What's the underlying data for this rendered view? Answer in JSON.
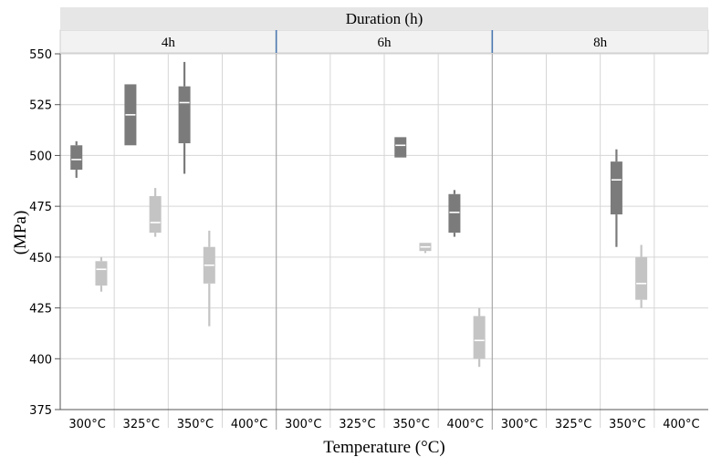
{
  "chart_data": {
    "type": "box",
    "title": "",
    "facet_header": "Duration (h)",
    "xlabel": "Temperature (°C)",
    "ylabel": "(MPa)",
    "ylim": [
      375,
      550
    ],
    "yticks": [
      375,
      400,
      425,
      450,
      475,
      500,
      525,
      550
    ],
    "grid": true,
    "categories": [
      "300°C",
      "325°C",
      "350°C",
      "400°C"
    ],
    "colors": {
      "dark": "#7b7b7b",
      "light": "#c4c4c4",
      "grid": "#d6d6d6",
      "header": "#e6e6e6",
      "divider": "#4a78b0"
    },
    "panels": [
      {
        "label": "4h",
        "boxes": [
          {
            "category": "300°C",
            "shade": "dark",
            "min": 489,
            "q1": 493,
            "median": 498,
            "q3": 505,
            "max": 507
          },
          {
            "category": "300°C",
            "shade": "light",
            "min": 433,
            "q1": 436,
            "median": 444,
            "q3": 448,
            "max": 450
          },
          {
            "category": "325°C",
            "shade": "dark",
            "min": 505,
            "q1": 505,
            "median": 520,
            "q3": 535,
            "max": 535
          },
          {
            "category": "325°C",
            "shade": "light",
            "min": 460,
            "q1": 462,
            "median": 467,
            "q3": 480,
            "max": 484
          },
          {
            "category": "350°C",
            "shade": "dark",
            "min": 491,
            "q1": 506,
            "median": 526,
            "q3": 534,
            "max": 546
          },
          {
            "category": "350°C",
            "shade": "light",
            "min": 416,
            "q1": 437,
            "median": 446,
            "q3": 455,
            "max": 463
          }
        ]
      },
      {
        "label": "6h",
        "boxes": [
          {
            "category": "350°C",
            "shade": "dark",
            "min": 499,
            "q1": 499,
            "median": 505,
            "q3": 509,
            "max": 509
          },
          {
            "category": "350°C",
            "shade": "light",
            "min": 452,
            "q1": 453,
            "median": 455,
            "q3": 457,
            "max": 457
          },
          {
            "category": "400°C",
            "shade": "dark",
            "min": 460,
            "q1": 462,
            "median": 472,
            "q3": 481,
            "max": 483
          },
          {
            "category": "400°C",
            "shade": "light",
            "min": 396,
            "q1": 400,
            "median": 409,
            "q3": 421,
            "max": 425
          }
        ]
      },
      {
        "label": "8h",
        "boxes": [
          {
            "category": "350°C",
            "shade": "dark",
            "min": 455,
            "q1": 471,
            "median": 488,
            "q3": 497,
            "max": 503
          },
          {
            "category": "350°C",
            "shade": "light",
            "min": 425,
            "q1": 429,
            "median": 437,
            "q3": 450,
            "max": 456
          }
        ]
      }
    ]
  }
}
